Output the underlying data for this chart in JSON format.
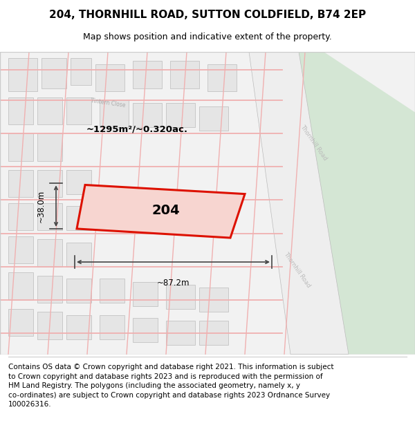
{
  "title": "204, THORNHILL ROAD, SUTTON COLDFIELD, B74 2EP",
  "subtitle": "Map shows position and indicative extent of the property.",
  "footer_text": "Contains OS data © Crown copyright and database right 2021. This information is subject\nto Crown copyright and database rights 2023 and is reproduced with the permission of\nHM Land Registry. The polygons (including the associated geometry, namely x, y\nco-ordinates) are subject to Crown copyright and database rights 2023 Ordnance Survey\n100026316.",
  "area_label": "~1295m²/~0.320ac.",
  "width_label": "~87.2m",
  "height_label": "~38.0m",
  "number_label": "204",
  "bg_map_color": "#f2f2f2",
  "bg_color": "#ffffff",
  "green_area_color": "#d4e6d4",
  "red_line_color": "#dd1100",
  "red_fill_color": "#f7d5d0",
  "pink_road_color": "#f0b0b0",
  "title_fontsize": 11,
  "subtitle_fontsize": 9,
  "footer_fontsize": 7.5,
  "figsize": [
    6.0,
    6.25
  ],
  "dpi": 100
}
